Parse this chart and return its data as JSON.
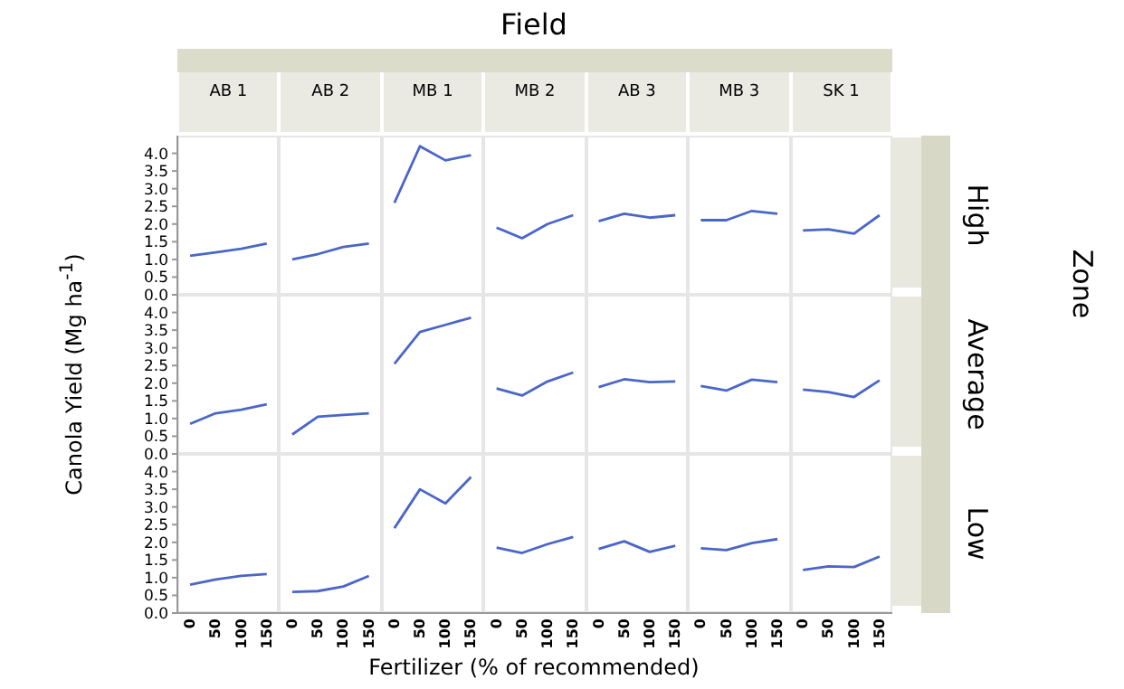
{
  "chart_data": [
    {
      "type": "line",
      "categories": [
        "0",
        "50",
        "100",
        "150",
        "0",
        "50",
        "100",
        "150",
        "0",
        "50",
        "100",
        "150",
        "0",
        "50",
        "100",
        "150",
        "0",
        "50",
        "100",
        "150",
        "0",
        "50",
        "100",
        "150",
        "0",
        "50",
        "100",
        "150"
      ],
      "y2label": "High",
      "annotations": [
        "AB 1",
        "AB 2",
        "MB 1",
        "MB 2",
        "AB 3",
        "MB 3",
        "SK 1"
      ],
      "ylim": [
        0,
        4.5
      ],
      "yticks": [
        {
          "value": 0,
          "label": "0.0"
        },
        {
          "value": 0.5,
          "label": "0.5"
        },
        {
          "value": 1,
          "label": "1.0"
        },
        {
          "value": 1.5,
          "label": "1.5"
        },
        {
          "value": 2,
          "label": "2.0"
        },
        {
          "value": 2.5,
          "label": "2.5"
        },
        {
          "value": 3,
          "label": "3.0"
        },
        {
          "value": 3.5,
          "label": "3.5"
        },
        {
          "value": 4,
          "label": "4.0"
        }
      ],
      "tick_labels": "y",
      "series": [
        {
          "color": "#4a66c8",
          "values": [
            1.1,
            1.2,
            1.3,
            1.45,
            null,
            null,
            null,
            null,
            null,
            null,
            null,
            null,
            null,
            null,
            null,
            null,
            null,
            null,
            null,
            null,
            null,
            null,
            null,
            null,
            null,
            null,
            null,
            null
          ]
        },
        {
          "color": "#4a66c8",
          "values": [
            null,
            null,
            null,
            null,
            1.0,
            1.15,
            1.35,
            1.45,
            null,
            null,
            null,
            null,
            null,
            null,
            null,
            null,
            null,
            null,
            null,
            null,
            null,
            null,
            null,
            null,
            null,
            null,
            null,
            null
          ]
        },
        {
          "color": "#4a66c8",
          "values": [
            null,
            null,
            null,
            null,
            null,
            null,
            null,
            null,
            2.6,
            4.2,
            3.8,
            3.95,
            null,
            null,
            null,
            null,
            null,
            null,
            null,
            null,
            null,
            null,
            null,
            null,
            null,
            null,
            null,
            null
          ]
        },
        {
          "color": "#4a66c8",
          "values": [
            null,
            null,
            null,
            null,
            null,
            null,
            null,
            null,
            null,
            null,
            null,
            null,
            1.9,
            1.6,
            2.0,
            2.25,
            null,
            null,
            null,
            null,
            null,
            null,
            null,
            null,
            null,
            null,
            null,
            null
          ]
        },
        {
          "color": "#4a66c8",
          "values": [
            null,
            null,
            null,
            null,
            null,
            null,
            null,
            null,
            null,
            null,
            null,
            null,
            null,
            null,
            null,
            null,
            2.08,
            2.29,
            2.18,
            2.25,
            null,
            null,
            null,
            null,
            null,
            null,
            null,
            null
          ]
        },
        {
          "color": "#4a66c8",
          "values": [
            null,
            null,
            null,
            null,
            null,
            null,
            null,
            null,
            null,
            null,
            null,
            null,
            null,
            null,
            null,
            null,
            null,
            null,
            null,
            null,
            2.11,
            2.11,
            2.37,
            2.29,
            null,
            null,
            null,
            null
          ]
        },
        {
          "color": "#4a66c8",
          "values": [
            null,
            null,
            null,
            null,
            null,
            null,
            null,
            null,
            null,
            null,
            null,
            null,
            null,
            null,
            null,
            null,
            null,
            null,
            null,
            null,
            null,
            null,
            null,
            null,
            1.82,
            1.85,
            1.73,
            2.25
          ]
        }
      ]
    },
    {
      "type": "line",
      "categories": [
        "0",
        "50",
        "100",
        "150",
        "0",
        "50",
        "100",
        "150",
        "0",
        "50",
        "100",
        "150",
        "0",
        "50",
        "100",
        "150",
        "0",
        "50",
        "100",
        "150",
        "0",
        "50",
        "100",
        "150",
        "0",
        "50",
        "100",
        "150"
      ],
      "y2label": "Average",
      "ylim": [
        0,
        4.5
      ],
      "yticks": [
        {
          "value": 0,
          "label": "0.0"
        },
        {
          "value": 0.5,
          "label": "0.5"
        },
        {
          "value": 1,
          "label": "1.0"
        },
        {
          "value": 1.5,
          "label": "1.5"
        },
        {
          "value": 2,
          "label": "2.0"
        },
        {
          "value": 2.5,
          "label": "2.5"
        },
        {
          "value": 3,
          "label": "3.0"
        },
        {
          "value": 3.5,
          "label": "3.5"
        },
        {
          "value": 4,
          "label": "4.0"
        }
      ],
      "tick_labels": "y",
      "series": [
        {
          "color": "#4a66c8",
          "values": [
            0.85,
            1.15,
            1.25,
            1.4,
            null,
            null,
            null,
            null,
            null,
            null,
            null,
            null,
            null,
            null,
            null,
            null,
            null,
            null,
            null,
            null,
            null,
            null,
            null,
            null,
            null,
            null,
            null,
            null
          ]
        },
        {
          "color": "#4a66c8",
          "values": [
            null,
            null,
            null,
            null,
            0.55,
            1.05,
            1.1,
            1.15,
            null,
            null,
            null,
            null,
            null,
            null,
            null,
            null,
            null,
            null,
            null,
            null,
            null,
            null,
            null,
            null,
            null,
            null,
            null,
            null
          ]
        },
        {
          "color": "#4a66c8",
          "values": [
            null,
            null,
            null,
            null,
            null,
            null,
            null,
            null,
            2.55,
            3.45,
            3.65,
            3.85,
            null,
            null,
            null,
            null,
            null,
            null,
            null,
            null,
            null,
            null,
            null,
            null,
            null,
            null,
            null,
            null
          ]
        },
        {
          "color": "#4a66c8",
          "values": [
            null,
            null,
            null,
            null,
            null,
            null,
            null,
            null,
            null,
            null,
            null,
            null,
            1.85,
            1.65,
            2.05,
            2.3,
            null,
            null,
            null,
            null,
            null,
            null,
            null,
            null,
            null,
            null,
            null,
            null
          ]
        },
        {
          "color": "#4a66c8",
          "values": [
            null,
            null,
            null,
            null,
            null,
            null,
            null,
            null,
            null,
            null,
            null,
            null,
            null,
            null,
            null,
            null,
            1.89,
            2.11,
            2.03,
            2.05,
            null,
            null,
            null,
            null,
            null,
            null,
            null,
            null
          ]
        },
        {
          "color": "#4a66c8",
          "values": [
            null,
            null,
            null,
            null,
            null,
            null,
            null,
            null,
            null,
            null,
            null,
            null,
            null,
            null,
            null,
            null,
            null,
            null,
            null,
            null,
            1.92,
            1.79,
            2.1,
            2.03,
            null,
            null,
            null,
            null
          ]
        },
        {
          "color": "#4a66c8",
          "values": [
            null,
            null,
            null,
            null,
            null,
            null,
            null,
            null,
            null,
            null,
            null,
            null,
            null,
            null,
            null,
            null,
            null,
            null,
            null,
            null,
            null,
            null,
            null,
            null,
            1.82,
            1.75,
            1.61,
            2.08
          ]
        }
      ]
    },
    {
      "type": "line",
      "categories": [
        "0",
        "50",
        "100",
        "150",
        "0",
        "50",
        "100",
        "150",
        "0",
        "50",
        "100",
        "150",
        "0",
        "50",
        "100",
        "150",
        "0",
        "50",
        "100",
        "150",
        "0",
        "50",
        "100",
        "150",
        "0",
        "50",
        "100",
        "150"
      ],
      "y2label": "Low",
      "ylim": [
        0,
        4.5
      ],
      "yticks": [
        {
          "value": 0,
          "label": "0.0"
        },
        {
          "value": 0.5,
          "label": "0.5"
        },
        {
          "value": 1,
          "label": "1.0"
        },
        {
          "value": 1.5,
          "label": "1.5"
        },
        {
          "value": 2,
          "label": "2.0"
        },
        {
          "value": 2.5,
          "label": "2.5"
        },
        {
          "value": 3,
          "label": "3.0"
        },
        {
          "value": 3.5,
          "label": "3.5"
        },
        {
          "value": 4,
          "label": "4.0"
        }
      ],
      "series": [
        {
          "color": "#4a66c8",
          "values": [
            0.8,
            0.95,
            1.05,
            1.1,
            null,
            null,
            null,
            null,
            null,
            null,
            null,
            null,
            null,
            null,
            null,
            null,
            null,
            null,
            null,
            null,
            null,
            null,
            null,
            null,
            null,
            null,
            null,
            null
          ]
        },
        {
          "color": "#4a66c8",
          "values": [
            null,
            null,
            null,
            null,
            0.6,
            0.62,
            0.75,
            1.05,
            null,
            null,
            null,
            null,
            null,
            null,
            null,
            null,
            null,
            null,
            null,
            null,
            null,
            null,
            null,
            null,
            null,
            null,
            null,
            null
          ]
        },
        {
          "color": "#4a66c8",
          "values": [
            null,
            null,
            null,
            null,
            null,
            null,
            null,
            null,
            2.4,
            3.5,
            3.1,
            3.85,
            null,
            null,
            null,
            null,
            null,
            null,
            null,
            null,
            null,
            null,
            null,
            null,
            null,
            null,
            null,
            null
          ]
        },
        {
          "color": "#4a66c8",
          "values": [
            null,
            null,
            null,
            null,
            null,
            null,
            null,
            null,
            null,
            null,
            null,
            null,
            1.85,
            1.7,
            1.95,
            2.15,
            null,
            null,
            null,
            null,
            null,
            null,
            null,
            null,
            null,
            null,
            null,
            null
          ]
        },
        {
          "color": "#4a66c8",
          "values": [
            null,
            null,
            null,
            null,
            null,
            null,
            null,
            null,
            null,
            null,
            null,
            null,
            null,
            null,
            null,
            null,
            1.81,
            2.03,
            1.73,
            1.9,
            null,
            null,
            null,
            null,
            null,
            null,
            null,
            null
          ]
        },
        {
          "color": "#4a66c8",
          "values": [
            null,
            null,
            null,
            null,
            null,
            null,
            null,
            null,
            null,
            null,
            null,
            null,
            null,
            null,
            null,
            null,
            null,
            null,
            null,
            null,
            1.83,
            1.78,
            1.98,
            2.09,
            null,
            null,
            null,
            null
          ]
        },
        {
          "color": "#4a66c8",
          "values": [
            null,
            null,
            null,
            null,
            null,
            null,
            null,
            null,
            null,
            null,
            null,
            null,
            null,
            null,
            null,
            null,
            null,
            null,
            null,
            null,
            null,
            null,
            null,
            null,
            1.22,
            1.32,
            1.3,
            1.6
          ]
        }
      ]
    },
    {
      "type": "other",
      "title": "Field",
      "xlabel": "Fertilizer (% of recommended)",
      "ylabel": "Canola Yield (Mg ha$^{-1}$)",
      "annotations": [
        "Zone"
      ]
    }
  ]
}
